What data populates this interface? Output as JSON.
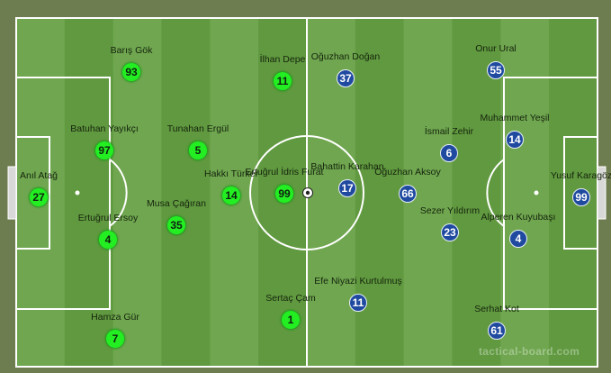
{
  "colors": {
    "home": "#22ee22",
    "away": "#1f4aa0",
    "pitch_light": "#6fa64f",
    "pitch_dark": "#60993f",
    "lines": "#ffffff"
  },
  "watermark": "tactical-board.com",
  "ball_icon": "soccer-ball-icon",
  "players": [
    {
      "team": "home",
      "name": "Barış Gök",
      "number": "93"
    },
    {
      "team": "home",
      "name": "İlhan Depe",
      "number": "11"
    },
    {
      "team": "home",
      "name": "Batuhan Yayıkçı",
      "number": "97"
    },
    {
      "team": "home",
      "name": "Tunahan Ergül",
      "number": "5"
    },
    {
      "team": "home",
      "name": "Anıl Atağ",
      "number": "27"
    },
    {
      "team": "home",
      "name": "Hakkı Türker",
      "number": "14"
    },
    {
      "team": "home",
      "name": "Ertuğrul İdris Furat",
      "number": "99"
    },
    {
      "team": "home",
      "name": "Musa Çağıran",
      "number": "35"
    },
    {
      "team": "home",
      "name": "Ertuğrul Ersoy",
      "number": "4"
    },
    {
      "team": "home",
      "name": "Hamza Gür",
      "number": "7"
    },
    {
      "team": "home",
      "name": "Sertaç Çam",
      "number": "1"
    },
    {
      "team": "away",
      "name": "Oğuzhan Doğan",
      "number": "37"
    },
    {
      "team": "away",
      "name": "Onur Ural",
      "number": "55"
    },
    {
      "team": "away",
      "name": "Muhammet Yeşil",
      "number": "14"
    },
    {
      "team": "away",
      "name": "İsmail Zehir",
      "number": "6"
    },
    {
      "team": "away",
      "name": "Bahattin Karahan",
      "number": "17"
    },
    {
      "team": "away",
      "name": "Oğuzhan Aksoy",
      "number": "66"
    },
    {
      "team": "away",
      "name": "Yusuf Karagöz",
      "number": "99"
    },
    {
      "team": "away",
      "name": "Sezer Yıldırım",
      "number": "23"
    },
    {
      "team": "away",
      "name": "Alperen Kuyubaşı",
      "number": "4"
    },
    {
      "team": "away",
      "name": "Efe Niyazi Kurtulmuş",
      "number": "11"
    },
    {
      "team": "away",
      "name": "Serhat Kot",
      "number": "61"
    }
  ]
}
